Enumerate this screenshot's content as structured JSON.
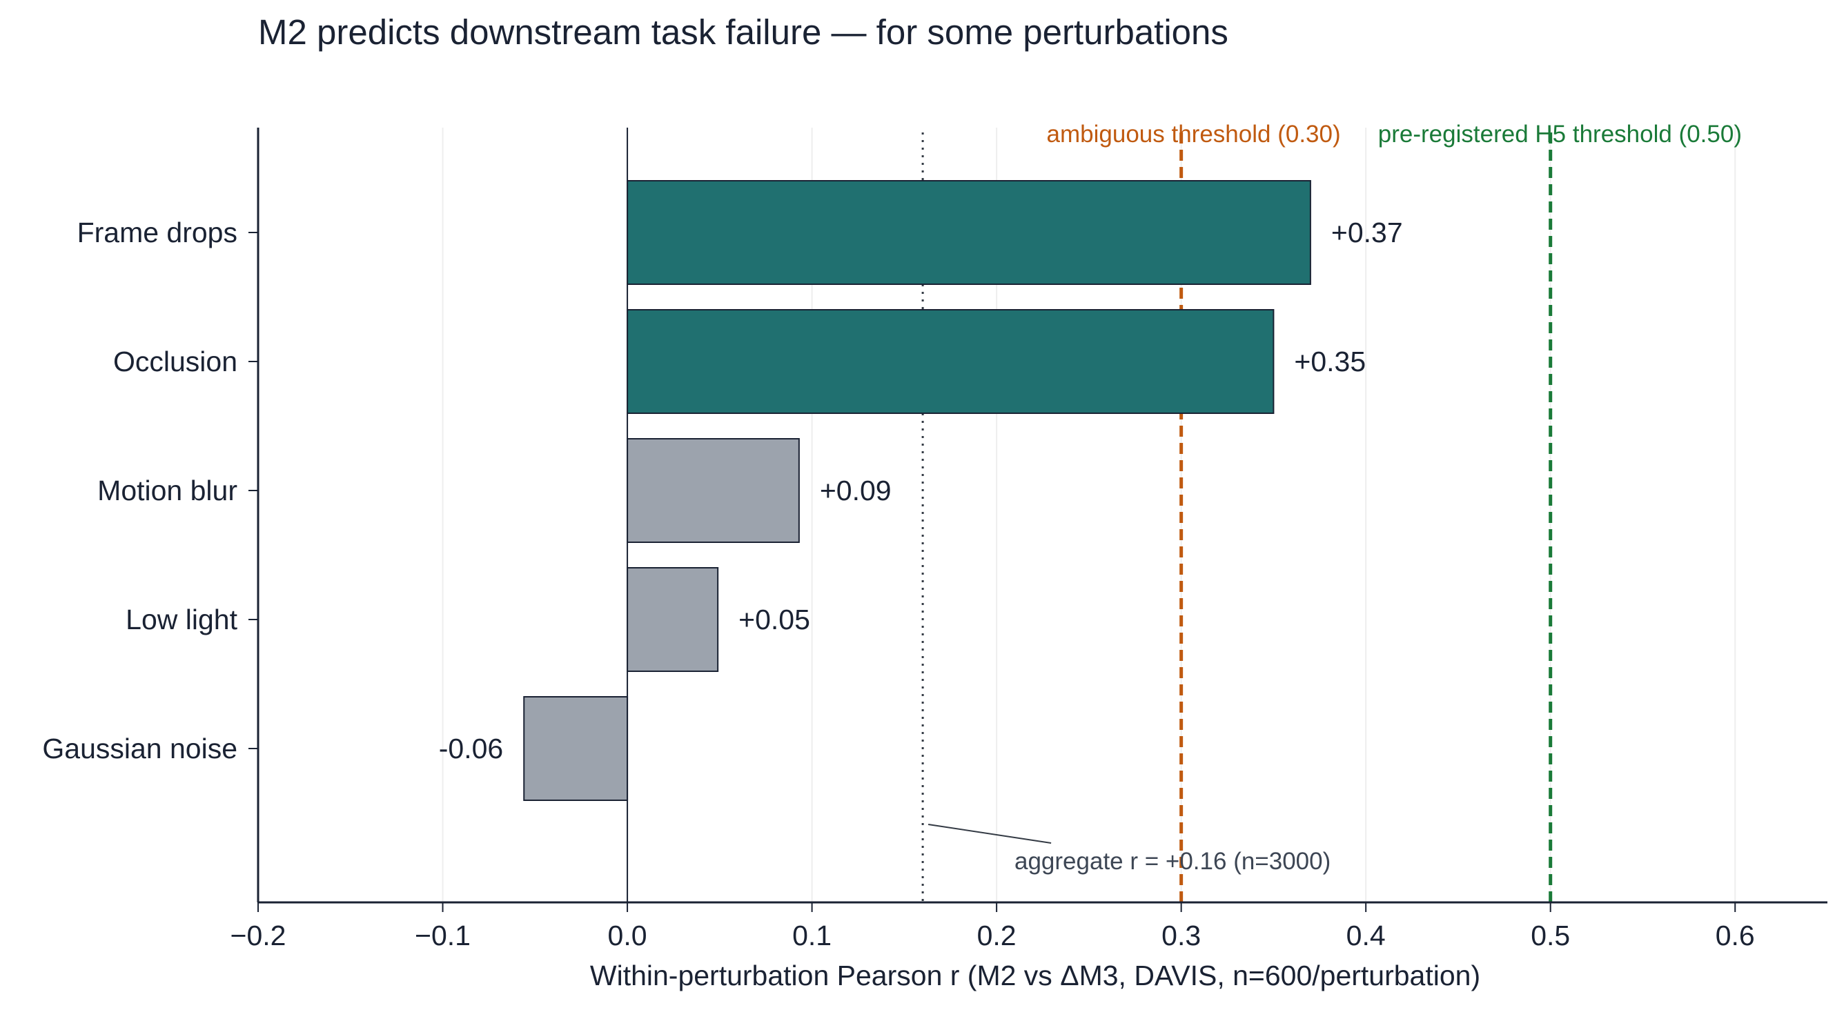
{
  "chart_data": {
    "type": "bar",
    "orientation": "horizontal",
    "title": "M2 predicts downstream task failure — for some perturbations",
    "xlabel": "Within-perturbation Pearson r (M2 vs ΔM3, DAVIS, n=600/perturbation)",
    "ylabel": "",
    "xlim": [
      -0.2,
      0.65
    ],
    "xticks": [
      -0.2,
      -0.1,
      0.0,
      0.1,
      0.2,
      0.3,
      0.4,
      0.5,
      0.6
    ],
    "xtick_labels": [
      "−0.2",
      "−0.1",
      "0.0",
      "0.1",
      "0.2",
      "0.3",
      "0.4",
      "0.5",
      "0.6"
    ],
    "grid": "vertical",
    "categories": [
      "Frame drops",
      "Occlusion",
      "Motion blur",
      "Low light",
      "Gaussian noise"
    ],
    "values": [
      0.37,
      0.35,
      0.093,
      0.049,
      -0.056
    ],
    "value_labels": [
      "+0.37",
      "+0.35",
      "+0.09",
      "+0.05",
      "-0.06"
    ],
    "bar_colors": [
      "#207070",
      "#207070",
      "#9ca3ad",
      "#9ca3ad",
      "#9ca3ad"
    ],
    "reference_lines": [
      {
        "value": 0.16,
        "style": "dotted",
        "color": "#333a44",
        "label": "aggregate r = +0.16 (n=3000)"
      },
      {
        "value": 0.3,
        "style": "dashed",
        "color": "#c05a10",
        "label": "ambiguous threshold (0.30)"
      },
      {
        "value": 0.5,
        "style": "dashed",
        "color": "#1a7a38",
        "label": "pre-registered H5 threshold (0.50)"
      }
    ]
  }
}
